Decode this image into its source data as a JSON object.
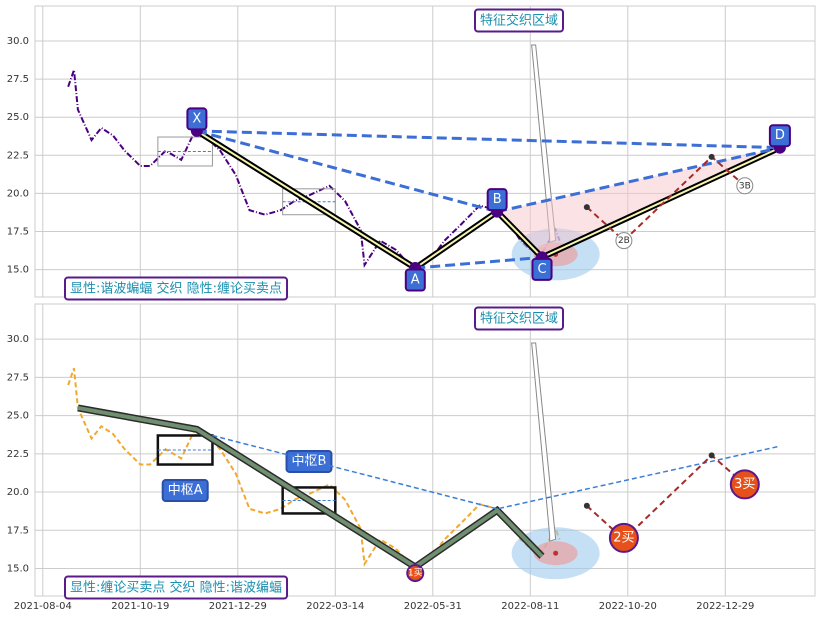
{
  "chart_data": [
    {
      "type": "line",
      "x": [
        13,
        16,
        18,
        25,
        30,
        36,
        42,
        50,
        55,
        63,
        71,
        78,
        83,
        91,
        99,
        106,
        114,
        122,
        129,
        137,
        147,
        155,
        163,
        165,
        173,
        181,
        191,
        199,
        206,
        214,
        224,
        233,
        240,
        245,
        250,
        256,
        263,
        265
      ],
      "series": [
        {
          "color": "#4b0082",
          "values": [
            27.0,
            28.1,
            25.5,
            23.5,
            24.3,
            23.8,
            22.8,
            21.8,
            21.8,
            22.8,
            22.2,
            24.1,
            23.8,
            22.8,
            21.2,
            18.9,
            18.6,
            18.9,
            19.5,
            19.9,
            20.5,
            19.5,
            17.6,
            15.3,
            16.9,
            16.3,
            14.9,
            15.7,
            16.9,
            17.9,
            19.2,
            18.9,
            17.9,
            16.9,
            16.3,
            16.1,
            17.6,
            16.9
          ]
        }
      ],
      "xlim": [
        -4,
        396
      ],
      "ylim": [
        13.2,
        32.3
      ],
      "yticks": [
        {
          "value": 15,
          "label": "15.0"
        },
        {
          "value": 17.5,
          "label": "17.5"
        },
        {
          "value": 20,
          "label": "20.0"
        },
        {
          "value": 22.5,
          "label": "22.5"
        },
        {
          "value": 25,
          "label": "25.0"
        },
        {
          "value": 27.5,
          "label": "27.5"
        },
        {
          "value": 30,
          "label": "30.0"
        }
      ],
      "grid": true,
      "zones": [
        {
          "x0": 59,
          "x1": 87,
          "y0": 21.8,
          "y1": 23.7
        },
        {
          "x0": 123,
          "x1": 150,
          "y0": 18.6,
          "y1": 20.3
        }
      ],
      "pattern": {
        "color": "#3c6fd6",
        "points": [
          {
            "label": "X",
            "x": 79,
            "y": 24.1
          },
          {
            "label": "A",
            "x": 191,
            "y": 15.1
          },
          {
            "label": "B",
            "x": 233,
            "y": 18.8
          },
          {
            "label": "C",
            "x": 256,
            "y": 15.8
          },
          {
            "label": "D",
            "x": 378,
            "y": 23.0
          }
        ]
      },
      "forecast": {
        "color": "#a52a2a",
        "x": [
          279,
          298,
          343,
          360
        ],
        "values": [
          19.1,
          16.9,
          22.4,
          20.5
        ]
      },
      "markers": [
        {
          "label": "2B",
          "x": 298,
          "y": 16.9
        },
        {
          "label": "3B",
          "x": 360,
          "y": 20.5
        }
      ],
      "annotation": "特征交织区域",
      "legend_text": "显性:谐波蝙蝠 交织 隐性:缠论买卖点"
    },
    {
      "type": "line",
      "x": [
        13,
        16,
        18,
        25,
        30,
        36,
        42,
        50,
        55,
        63,
        71,
        78,
        83,
        91,
        99,
        106,
        114,
        122,
        129,
        137,
        147,
        155,
        163,
        165,
        173,
        181,
        191,
        199,
        206,
        214,
        224,
        233,
        240,
        245,
        250,
        256,
        263,
        265
      ],
      "series": [
        {
          "color": "#f0a830",
          "values": [
            27.0,
            28.1,
            25.5,
            23.5,
            24.3,
            23.8,
            22.8,
            21.8,
            21.8,
            22.8,
            22.2,
            24.1,
            23.8,
            22.8,
            21.2,
            18.9,
            18.6,
            18.9,
            19.5,
            19.9,
            20.5,
            19.5,
            17.6,
            15.3,
            16.9,
            16.3,
            14.9,
            15.7,
            16.9,
            17.9,
            19.2,
            18.9,
            17.9,
            16.9,
            16.3,
            16.1,
            17.6,
            16.9
          ]
        }
      ],
      "xlim": [
        -4,
        396
      ],
      "ylim": [
        13.2,
        32.3
      ],
      "xticks": [
        {
          "value": 0,
          "label": "2021-08-04"
        },
        {
          "value": 50,
          "label": "2021-10-19"
        },
        {
          "value": 100,
          "label": "2021-12-29"
        },
        {
          "value": 150,
          "label": "2022-03-14"
        },
        {
          "value": 200,
          "label": "2022-05-31"
        },
        {
          "value": 250,
          "label": "2022-08-11"
        },
        {
          "value": 300,
          "label": "2022-10-20"
        },
        {
          "value": 350,
          "label": "2022-12-29"
        }
      ],
      "yticks": [
        {
          "value": 15,
          "label": "15.0"
        },
        {
          "value": 17.5,
          "label": "17.5"
        },
        {
          "value": 20,
          "label": "20.0"
        },
        {
          "value": 22.5,
          "label": "22.5"
        },
        {
          "value": 25,
          "label": "25.0"
        },
        {
          "value": 27.5,
          "label": "27.5"
        },
        {
          "value": 30,
          "label": "30.0"
        }
      ],
      "grid": true,
      "zones": [
        {
          "label": "中枢A",
          "x0": 59,
          "x1": 87,
          "y0": 21.8,
          "y1": 23.7
        },
        {
          "label": "中枢B",
          "x0": 123,
          "x1": 150,
          "y0": 18.6,
          "y1": 20.3
        }
      ],
      "strokes": {
        "color": "#6f8f70",
        "x": [
          18,
          79,
          191,
          233,
          256
        ],
        "values": [
          25.5,
          24.1,
          15.1,
          18.8,
          15.8
        ]
      },
      "trend": {
        "color": "#3c7fd6",
        "x": [
          87,
          233,
          378
        ],
        "values": [
          23.7,
          18.9,
          23.0
        ]
      },
      "forecast": {
        "color": "#a52a2a",
        "x": [
          279,
          298,
          343,
          360
        ],
        "values": [
          19.1,
          16.9,
          22.4,
          20.5
        ]
      },
      "buy_points": [
        {
          "label": "1买",
          "x": 191,
          "y": 14.7
        },
        {
          "label": "2买",
          "x": 298,
          "y": 17.0
        },
        {
          "label": "3买",
          "x": 360,
          "y": 20.5
        }
      ],
      "annotation": "特征交织区域",
      "legend_text": "显性:缠论买卖点 交织 隐性:谐波编蝠"
    }
  ]
}
